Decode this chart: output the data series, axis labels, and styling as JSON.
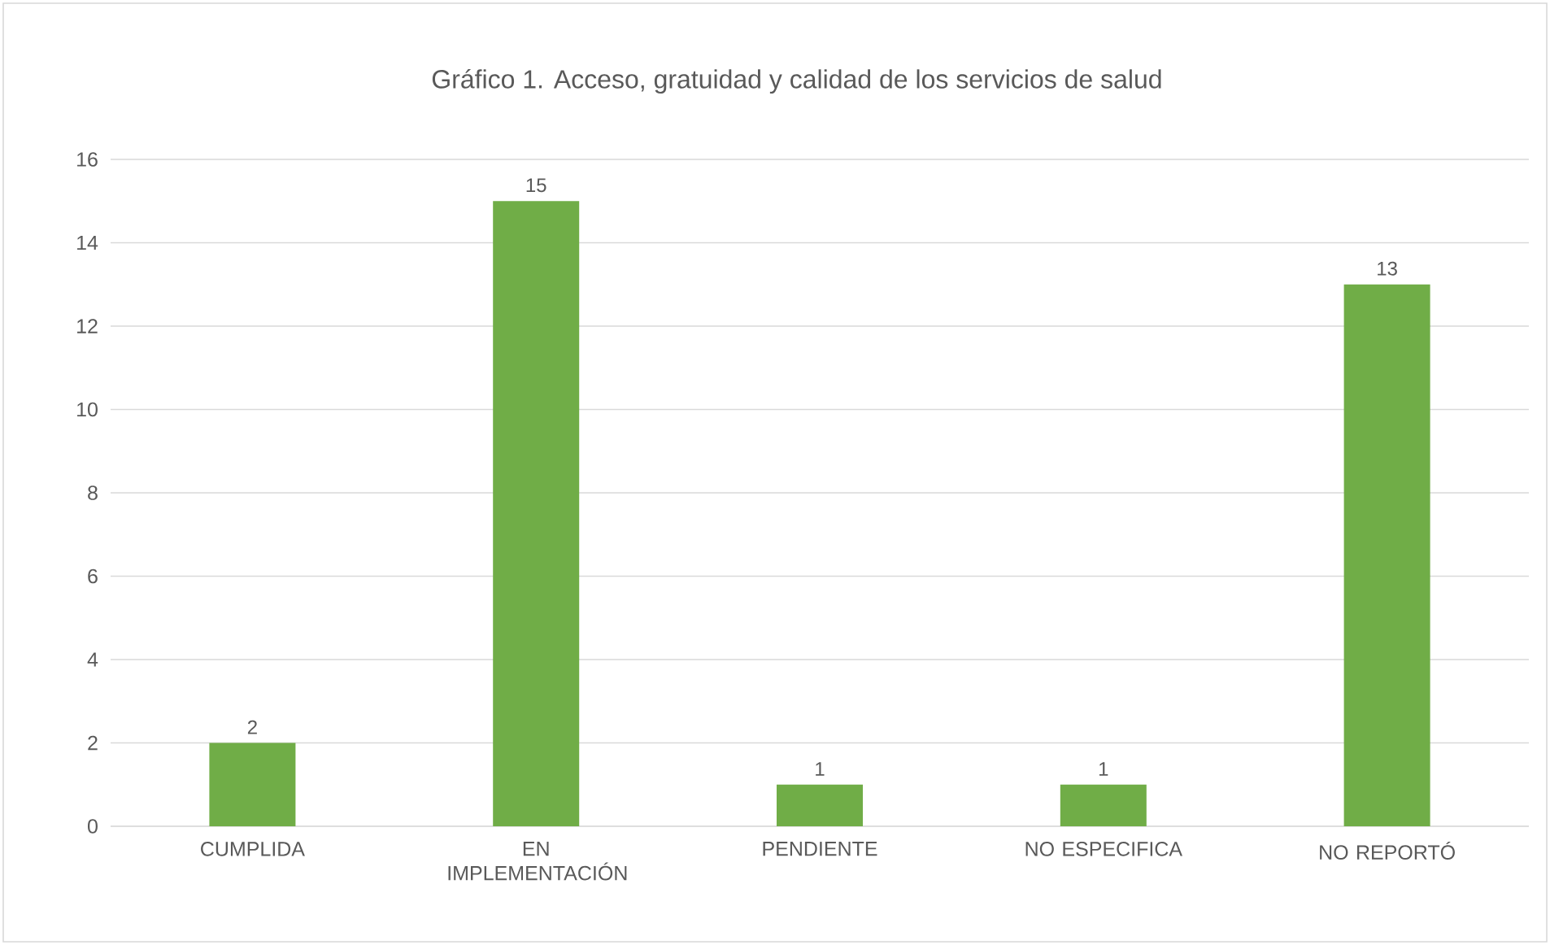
{
  "chart_data": {
    "type": "bar",
    "title": "Gráfico 1. Acceso, gratuidad y calidad de los servicios de salud",
    "categories": [
      "CUMPLIDA",
      "EN IMPLEMENTACIÓN",
      "PENDIENTE",
      "NO ESPECIFICA",
      "NO REPORTÓ"
    ],
    "values": [
      2,
      15,
      1,
      1,
      13
    ],
    "color": "#70ad47",
    "ylim": [
      0,
      16
    ],
    "yticks": [
      0,
      2,
      4,
      6,
      8,
      10,
      12,
      14,
      16
    ],
    "grid": "y",
    "data_labels": true
  }
}
